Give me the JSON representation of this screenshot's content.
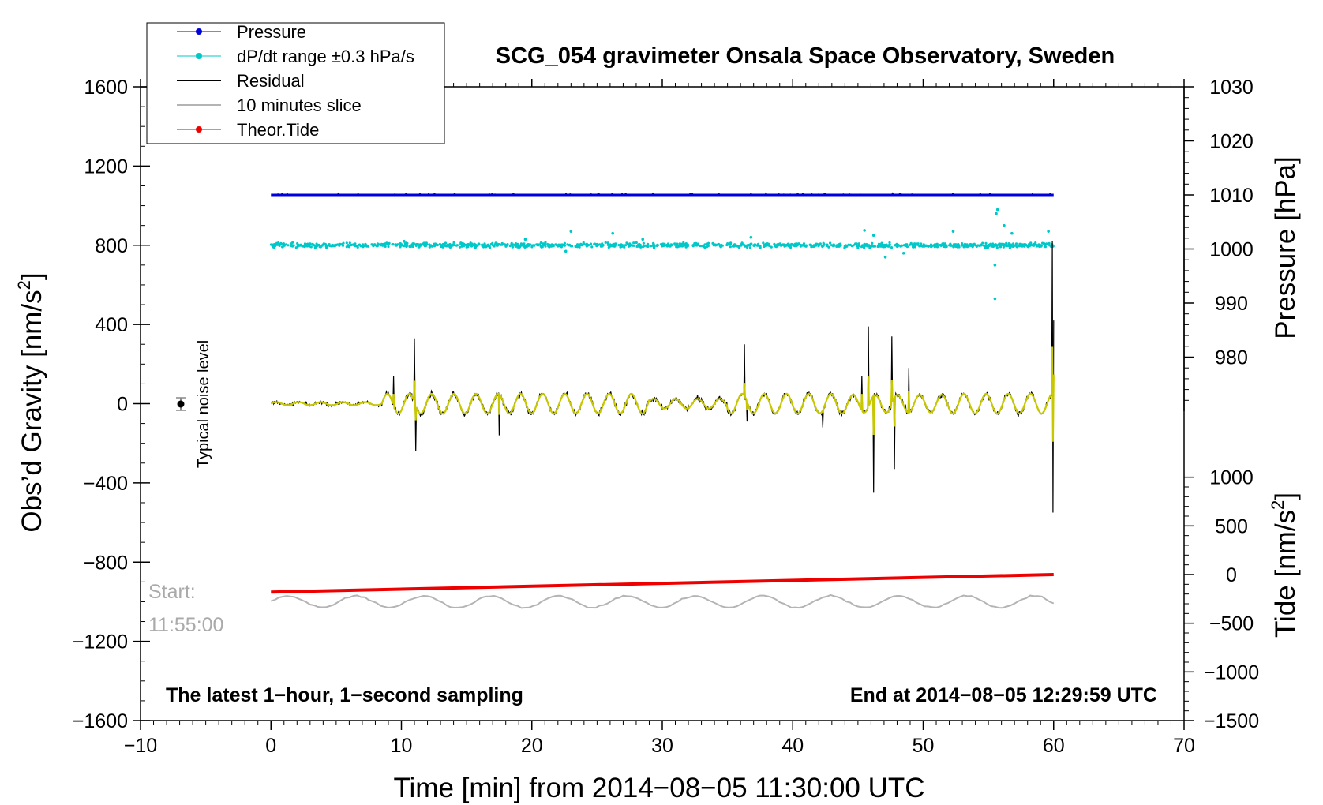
{
  "chart_data": {
    "type": "line",
    "title": "SCG_054 gravimeter Onsala Space Observatory, Sweden",
    "xlabel": "Time [min] from 2014−08−05 11:30:00 UTC",
    "ylabel_left_main": "Obs’d Gravity [nm/s",
    "ylabel_left_sup": "2",
    "ylabel_left_end": "]",
    "ylabel_right_top": "Pressure [hPa]",
    "ylabel_right_bottom_main": "Tide [nm/s",
    "ylabel_right_bottom_sup": "2",
    "ylabel_right_bottom_end": "]",
    "xlim": [
      -10,
      70
    ],
    "ylim": [
      -1600,
      1600
    ],
    "x_ticks": [
      -10,
      0,
      10,
      20,
      30,
      40,
      50,
      60,
      70
    ],
    "x_tick_labels": [
      "−10",
      "0",
      "10",
      "20",
      "30",
      "40",
      "50",
      "60",
      "70"
    ],
    "y_ticks": [
      -1600,
      -1200,
      -800,
      -400,
      0,
      400,
      800,
      1200,
      1600
    ],
    "y_tick_labels": [
      "−1600",
      "−1200",
      "−800",
      "−400",
      "0",
      "400",
      "800",
      "1200",
      "1600"
    ],
    "pressure_axis": {
      "range_hPa": [
        970,
        1030
      ],
      "ticks": [
        980,
        990,
        1000,
        1010,
        1020,
        1030
      ],
      "tick_labels": [
        "980",
        "990",
        "1000",
        "1010",
        "1020",
        "1030"
      ]
    },
    "tide_axis": {
      "range_nm_s2": [
        -1500,
        1500
      ],
      "ticks": [
        -1500,
        -1000,
        -500,
        0,
        500,
        1000
      ],
      "tick_labels": [
        "−1500",
        "−1000",
        "−500",
        "0",
        "500",
        "1000"
      ]
    },
    "legend": [
      {
        "label": "Pressure",
        "color": "#0000dd",
        "marker": true
      },
      {
        "label": "dP/dt range ±0.3 hPa/s",
        "color": "#00c8c8",
        "marker": true
      },
      {
        "label": "Residual",
        "color": "#000000",
        "marker": false
      },
      {
        "label": "10 minutes slice",
        "color": "#b4b4b4",
        "marker": false
      },
      {
        "label": "Theor.Tide",
        "color": "#ee0000",
        "marker": true
      }
    ],
    "series": [
      {
        "name": "Pressure",
        "color": "#0000dd",
        "axis": "pressure",
        "x": [
          0,
          60
        ],
        "values": [
          1010,
          1010
        ]
      },
      {
        "name": "dP/dt",
        "color": "#00c8c8",
        "axis": "gravity",
        "center": 800,
        "spread": 30,
        "outliers": [
          [
            23,
            870
          ],
          [
            22.6,
            770
          ],
          [
            26.2,
            860
          ],
          [
            28.5,
            830
          ],
          [
            36.8,
            840
          ],
          [
            45.5,
            875
          ],
          [
            46.2,
            850
          ],
          [
            47.1,
            740
          ],
          [
            48.5,
            760
          ],
          [
            52.3,
            870
          ],
          [
            55.7,
            980
          ],
          [
            55.6,
            960
          ],
          [
            56.2,
            900
          ],
          [
            55.5,
            700
          ],
          [
            55.5,
            530
          ],
          [
            56.8,
            860
          ],
          [
            59.6,
            870
          ],
          [
            19.5,
            830
          ],
          [
            10.2,
            820
          ]
        ]
      },
      {
        "name": "Residual",
        "color": "#000000",
        "axis": "gravity",
        "spikes": [
          [
            9.4,
            140
          ],
          [
            11.0,
            330
          ],
          [
            11.1,
            -240
          ],
          [
            17.5,
            -160
          ],
          [
            36.3,
            300
          ],
          [
            36.5,
            -90
          ],
          [
            42.3,
            -120
          ],
          [
            45.3,
            140
          ],
          [
            45.8,
            390
          ],
          [
            46.2,
            -450
          ],
          [
            47.6,
            340
          ],
          [
            47.8,
            -330
          ],
          [
            48.9,
            180
          ],
          [
            59.9,
            820
          ],
          [
            59.95,
            -550
          ],
          [
            60.0,
            420
          ]
        ]
      },
      {
        "name": "10 minutes slice",
        "color": "#b4b4b4",
        "axis": "gravity",
        "center": -1000,
        "amplitude": 30
      },
      {
        "name": "Theor.Tide",
        "color": "#ee0000",
        "axis": "tide",
        "x": [
          0,
          60
        ],
        "values": [
          -180,
          0
        ]
      }
    ],
    "noise_marker": {
      "x": -7,
      "y": 0,
      "label": "Typical noise level"
    },
    "annotations": {
      "start_label": "Start:",
      "start_time": "11:55:00",
      "latest": "The latest 1−hour, 1−second sampling",
      "end": "End at 2014−08−05 12:29:59 UTC"
    }
  }
}
